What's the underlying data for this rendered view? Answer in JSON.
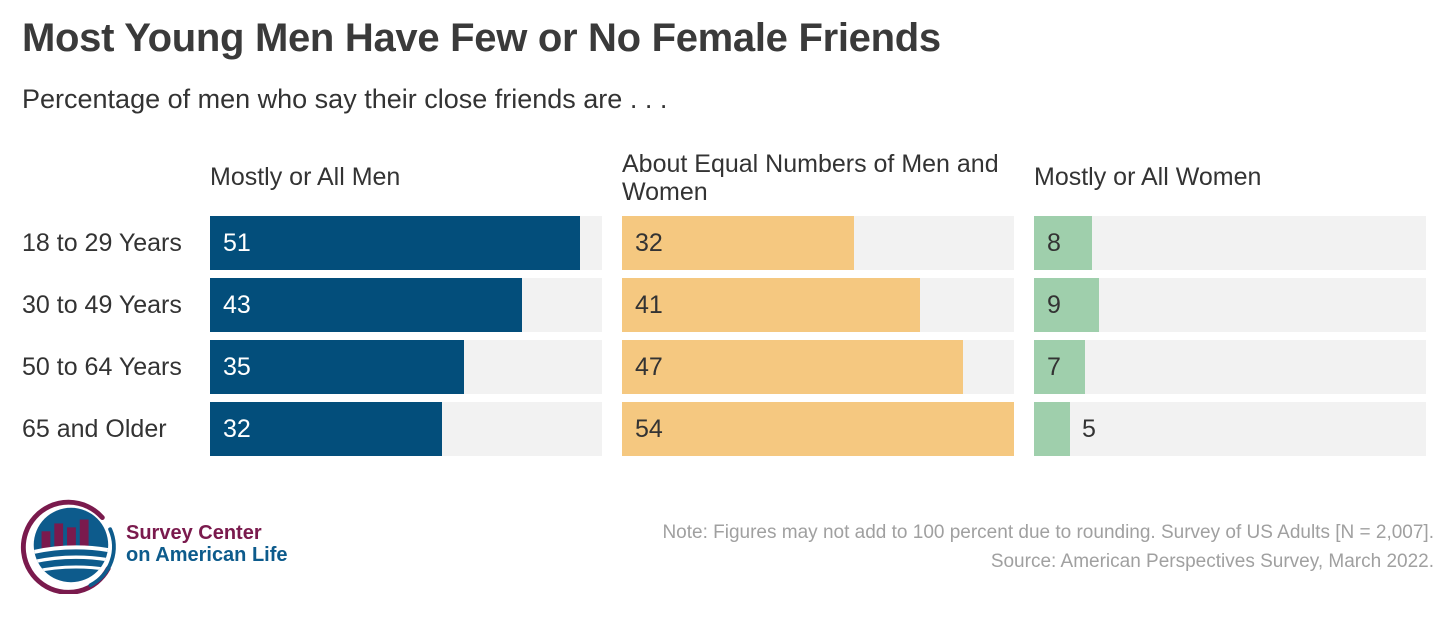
{
  "title": "Most Young Men Have Few or No Female Friends",
  "subtitle": "Percentage of men who say their close friends are . . .",
  "chart_data": {
    "type": "bar",
    "orientation": "horizontal",
    "layout": "small-multiples",
    "categories": [
      "18 to 29 Years",
      "30 to 49 Years",
      "50 to 64 Years",
      "65 and Older"
    ],
    "xlim": [
      0,
      54
    ],
    "series": [
      {
        "name": "Mostly or All Men",
        "values": [
          51,
          43,
          35,
          32
        ],
        "color": "#034e7b",
        "label_color": "#ffffff"
      },
      {
        "name": "About Equal Numbers of Men and Women",
        "values": [
          32,
          41,
          47,
          54
        ],
        "color": "#f5c880",
        "label_color": "#333333"
      },
      {
        "name": "Mostly or All Women",
        "values": [
          8,
          9,
          7,
          5
        ],
        "color": "#9fcfac",
        "label_color": "#333333"
      }
    ],
    "track_color": "#f2f2f2",
    "grid": false,
    "legend": "none"
  },
  "footer": {
    "logo_line1": "Survey Center",
    "logo_line2": "on American Life",
    "note": "Note: Figures may not add to 100 percent due to rounding. Survey of US Adults [N = 2,007].",
    "source": "Source: American Perspectives Survey, March 2022."
  },
  "colors": {
    "logo_purple": "#7a1a4d",
    "logo_blue": "#0d5b8c"
  },
  "icons": {
    "logo": "survey-center-logo-icon"
  }
}
